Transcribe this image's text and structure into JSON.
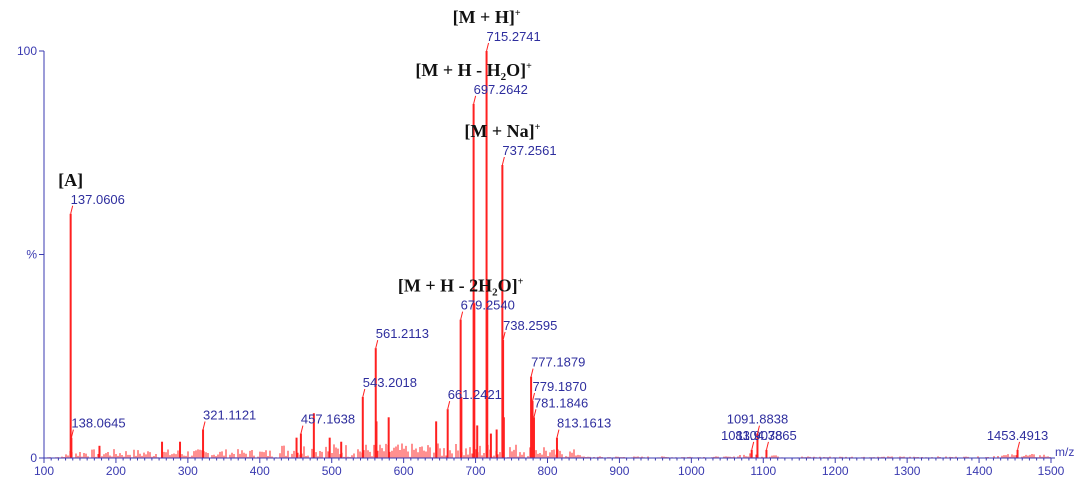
{
  "chart_data": {
    "type": "bar",
    "xlabel": "m/z",
    "ylabel": "%",
    "xlim": [
      100,
      1500
    ],
    "ylim": [
      0,
      100
    ],
    "x_ticks": [
      100,
      200,
      300,
      400,
      500,
      600,
      700,
      800,
      900,
      1000,
      1100,
      1200,
      1300,
      1400,
      1500
    ],
    "y_ticks": [
      {
        "value": 0,
        "label": "0"
      },
      {
        "value": 50,
        "label": "%"
      },
      {
        "value": 100,
        "label": "100"
      }
    ],
    "colors": {
      "peaks": "#ff2020",
      "axis": "#3a3ab0",
      "peak_labels": "#2e2e9e",
      "ion_labels": "#111111"
    },
    "peaks": [
      {
        "mz": 137.0606,
        "intensity": 60,
        "label": "137.0606"
      },
      {
        "mz": 138.0645,
        "intensity": 5,
        "label": "138.0645"
      },
      {
        "mz": 321.1121,
        "intensity": 7,
        "label": "321.1121"
      },
      {
        "mz": 457.1638,
        "intensity": 6,
        "label": "457.1638"
      },
      {
        "mz": 543.2018,
        "intensity": 15,
        "label": "543.2018"
      },
      {
        "mz": 561.2113,
        "intensity": 27,
        "label": "561.2113"
      },
      {
        "mz": 661.2421,
        "intensity": 12,
        "label": "661.2421"
      },
      {
        "mz": 679.254,
        "intensity": 34,
        "label": "679.2540"
      },
      {
        "mz": 697.2642,
        "intensity": 87,
        "label": "697.2642"
      },
      {
        "mz": 715.2741,
        "intensity": 100,
        "label": "715.2741"
      },
      {
        "mz": 737.2561,
        "intensity": 72,
        "label": "737.2561"
      },
      {
        "mz": 738.2595,
        "intensity": 29,
        "label": "738.2595"
      },
      {
        "mz": 777.1879,
        "intensity": 20,
        "label": "777.1879"
      },
      {
        "mz": 779.187,
        "intensity": 14,
        "label": "779.1870"
      },
      {
        "mz": 781.1846,
        "intensity": 10,
        "label": "781.1846"
      },
      {
        "mz": 813.1613,
        "intensity": 5,
        "label": "813.1613"
      },
      {
        "mz": 1083.9078,
        "intensity": 2,
        "label": "1083.9078"
      },
      {
        "mz": 1091.8838,
        "intensity": 6,
        "label": "1091.8838"
      },
      {
        "mz": 1104.3865,
        "intensity": 2,
        "label": "1104.3865"
      },
      {
        "mz": 1453.4913,
        "intensity": 2,
        "label": "1453.4913"
      },
      {
        "mz": 716.27,
        "intensity": 43
      },
      {
        "mz": 698.27,
        "intensity": 38
      },
      {
        "mz": 680.26,
        "intensity": 15
      },
      {
        "mz": 562.21,
        "intensity": 9
      },
      {
        "mz": 475.17,
        "intensity": 11
      },
      {
        "mz": 579.2,
        "intensity": 10
      },
      {
        "mz": 645.2,
        "intensity": 9
      },
      {
        "mz": 702.3,
        "intensity": 8
      },
      {
        "mz": 729.3,
        "intensity": 7
      },
      {
        "mz": 739.3,
        "intensity": 10
      },
      {
        "mz": 721.3,
        "intensity": 6
      },
      {
        "mz": 497.2,
        "intensity": 5
      },
      {
        "mz": 513.2,
        "intensity": 4
      },
      {
        "mz": 451.1,
        "intensity": 5
      },
      {
        "mz": 289.1,
        "intensity": 4
      },
      {
        "mz": 177.1,
        "intensity": 3
      },
      {
        "mz": 264.1,
        "intensity": 4
      }
    ],
    "ion_annotations": [
      {
        "mz": 137.0606,
        "intensity": 60,
        "text": "[A]"
      },
      {
        "mz": 679.254,
        "intensity": 34,
        "main": "[M + H - 2H",
        "sub": "2",
        "tail": "O]",
        "sup": "+"
      },
      {
        "mz": 697.2642,
        "intensity": 87,
        "main": "[M + H - H",
        "sub": "2",
        "tail": "O]",
        "sup": "+"
      },
      {
        "mz": 715.2741,
        "intensity": 100,
        "main": "[M + H]",
        "sup": "+"
      },
      {
        "mz": 737.2561,
        "intensity": 72,
        "main": "[M + Na]",
        "sup": "+"
      }
    ]
  }
}
